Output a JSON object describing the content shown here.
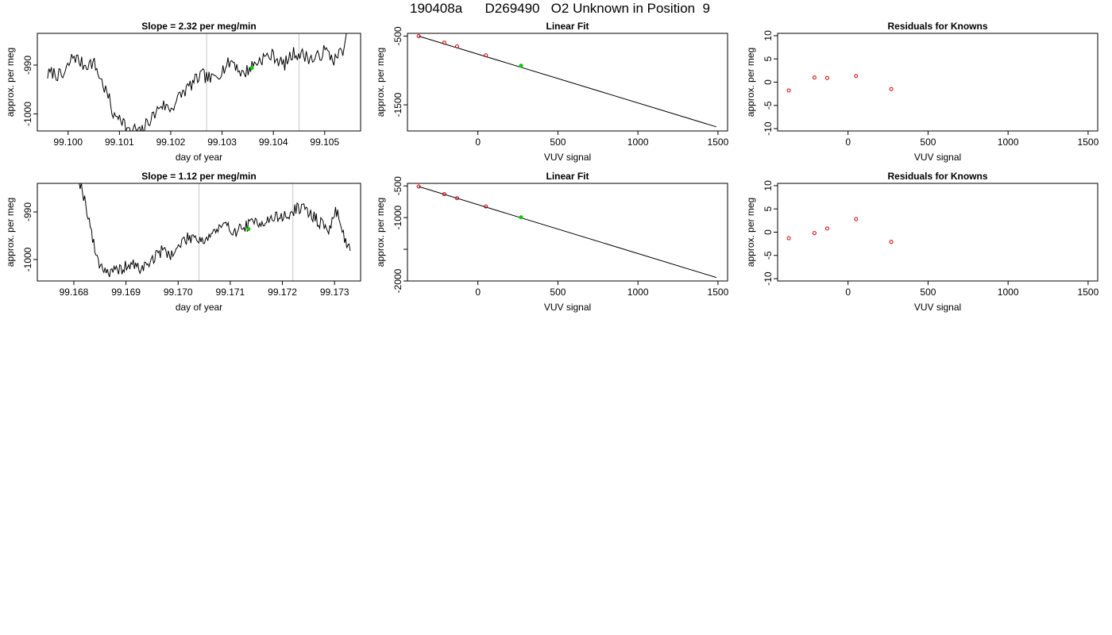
{
  "title": "190408a      D269490   O2 Unknown in Position  9",
  "colors": {
    "series": "#000000",
    "known": "#cc0000",
    "unknown": "#00cc00",
    "marker_line": "#c8c8c8",
    "fit": "#000000"
  },
  "chart_data": [
    {
      "type": "line",
      "title": "Slope =  2.32  per meg/min",
      "xlabel": "day of year",
      "ylabel": "approx. per meg",
      "xlim": [
        99.0994,
        99.1057
      ],
      "ylim": [
        -1003.5,
        -983.5
      ],
      "xticks": [
        99.1,
        99.101,
        99.102,
        99.103,
        99.104,
        99.105
      ],
      "xtick_labels": [
        "99.100",
        "99.101",
        "99.102",
        "99.103",
        "99.104",
        "99.105"
      ],
      "yticks": [
        -1000,
        -990
      ],
      "ytick_labels": [
        "-1000",
        "-990"
      ],
      "vlines": [
        99.1027,
        99.1045
      ],
      "anchors": [
        [
          99.0996,
          -992
        ],
        [
          99.0997,
          -991.5
        ],
        [
          99.0999,
          -992.5
        ],
        [
          99.1001,
          -988
        ],
        [
          99.1003,
          -990
        ],
        [
          99.1005,
          -989.5
        ],
        [
          99.1006,
          -992
        ],
        [
          99.1008,
          -997
        ],
        [
          99.1009,
          -1001
        ],
        [
          99.101,
          -1000
        ],
        [
          99.1011,
          -1002
        ],
        [
          99.1012,
          -1004
        ],
        [
          99.1013,
          -1003
        ],
        [
          99.1014,
          -1004
        ],
        [
          99.1016,
          -1001
        ],
        [
          99.1017,
          -1000
        ],
        [
          99.1018,
          -998
        ],
        [
          99.102,
          -999
        ],
        [
          99.1022,
          -996
        ],
        [
          99.1024,
          -994
        ],
        [
          99.1026,
          -992
        ],
        [
          99.1028,
          -993
        ],
        [
          99.103,
          -991
        ],
        [
          99.1032,
          -989
        ],
        [
          99.1034,
          -992
        ],
        [
          99.1036,
          -990
        ],
        [
          99.1038,
          -988.5
        ],
        [
          99.104,
          -988
        ],
        [
          99.1042,
          -990
        ],
        [
          99.1044,
          -987.5
        ],
        [
          99.1046,
          -988
        ],
        [
          99.1048,
          -989
        ],
        [
          99.105,
          -987
        ],
        [
          99.1052,
          -989
        ],
        [
          99.1054,
          -986
        ],
        [
          99.1055,
          -980
        ]
      ],
      "noise": 1.4,
      "seed": 7,
      "points": [
        {
          "x": 99.10358,
          "y": -990.6,
          "kind": "unknown"
        }
      ]
    },
    {
      "type": "scatter",
      "title": "Linear Fit",
      "xlabel": "VUV signal",
      "ylabel": "approx. per meg",
      "xlim": [
        -440,
        1560
      ],
      "ylim": [
        -1880,
        -460
      ],
      "xticks": [
        0,
        500,
        1000,
        1500
      ],
      "xtick_labels": [
        "0",
        "500",
        "1000",
        "1500"
      ],
      "yticks": [
        -1500,
        -500
      ],
      "ytick_labels": [
        "-1500",
        "-500"
      ],
      "fit_line": [
        [
          -370,
          -500
        ],
        [
          1490,
          -1820
        ]
      ],
      "points": [
        {
          "x": -370,
          "y": -500,
          "kind": "known"
        },
        {
          "x": -210,
          "y": -595,
          "kind": "known"
        },
        {
          "x": -130,
          "y": -650,
          "kind": "known"
        },
        {
          "x": 50,
          "y": -780,
          "kind": "known"
        },
        {
          "x": 270,
          "y": -930,
          "kind": "unknown"
        }
      ]
    },
    {
      "type": "scatter",
      "title": "Residuals for Knowns",
      "xlabel": "VUV signal",
      "ylabel": "approx. per meg",
      "xlim": [
        -440,
        1560
      ],
      "ylim": [
        -10.5,
        10.5
      ],
      "xticks": [
        0,
        500,
        1000,
        1500
      ],
      "xtick_labels": [
        "0",
        "500",
        "1000",
        "1500"
      ],
      "yticks": [
        -10,
        -5,
        0,
        5,
        10
      ],
      "ytick_labels": [
        "-10",
        "-5",
        "0",
        "5",
        "10"
      ],
      "points": [
        {
          "x": -370,
          "y": -1.8,
          "kind": "known"
        },
        {
          "x": -210,
          "y": 1.0,
          "kind": "known"
        },
        {
          "x": -130,
          "y": 0.9,
          "kind": "known"
        },
        {
          "x": 50,
          "y": 1.3,
          "kind": "known"
        },
        {
          "x": 270,
          "y": -1.5,
          "kind": "known"
        }
      ]
    },
    {
      "type": "line",
      "title": "Slope =  1.12  per meg/min",
      "xlabel": "day of year",
      "ylabel": "approx. per meg",
      "xlim": [
        99.1673,
        99.1735
      ],
      "ylim": [
        -1004.5,
        -984
      ],
      "xticks": [
        99.168,
        99.169,
        99.17,
        99.171,
        99.172,
        99.173
      ],
      "xtick_labels": [
        "99.168",
        "99.169",
        "99.170",
        "99.171",
        "99.172",
        "99.173"
      ],
      "yticks": [
        -1000,
        -990
      ],
      "ytick_labels": [
        "-1000",
        "-990"
      ],
      "vlines": [
        99.1704,
        99.1722
      ],
      "anchors": [
        [
          99.1681,
          -983
        ],
        [
          99.1682,
          -987
        ],
        [
          99.1683,
          -992
        ],
        [
          99.1684,
          -998
        ],
        [
          99.1685,
          -1001
        ],
        [
          99.1687,
          -1003
        ],
        [
          99.1689,
          -1002
        ],
        [
          99.1691,
          -1001
        ],
        [
          99.1693,
          -1002
        ],
        [
          99.1695,
          -1000
        ],
        [
          99.1697,
          -998
        ],
        [
          99.1699,
          -999
        ],
        [
          99.1701,
          -996
        ],
        [
          99.1703,
          -995
        ],
        [
          99.1705,
          -996
        ],
        [
          99.1707,
          -994
        ],
        [
          99.1709,
          -993
        ],
        [
          99.1711,
          -994
        ],
        [
          99.1713,
          -993
        ],
        [
          99.1715,
          -992
        ],
        [
          99.1717,
          -992
        ],
        [
          99.1719,
          -991
        ],
        [
          99.1721,
          -991
        ],
        [
          99.1723,
          -989
        ],
        [
          99.1725,
          -990
        ],
        [
          99.1727,
          -992
        ],
        [
          99.1729,
          -994
        ],
        [
          99.173,
          -990
        ],
        [
          99.1731,
          -991
        ],
        [
          99.1732,
          -996
        ],
        [
          99.1733,
          -998
        ]
      ],
      "noise": 1.3,
      "seed": 19,
      "points": [
        {
          "x": 99.17135,
          "y": -993.6,
          "kind": "unknown"
        }
      ]
    },
    {
      "type": "scatter",
      "title": "Linear Fit",
      "xlabel": "VUV signal",
      "ylabel": "approx. per meg",
      "xlim": [
        -440,
        1560
      ],
      "ylim": [
        -2000,
        -460
      ],
      "xticks": [
        0,
        500,
        1000,
        1500
      ],
      "xtick_labels": [
        "0",
        "500",
        "1000",
        "1500"
      ],
      "yticks": [
        -2000,
        -1500,
        -1000,
        -500
      ],
      "ytick_labels": [
        "-2000",
        "",
        "-1000",
        "-500"
      ],
      "fit_line": [
        [
          -370,
          -510
        ],
        [
          1490,
          -1945
        ]
      ],
      "points": [
        {
          "x": -370,
          "y": -510,
          "kind": "known"
        },
        {
          "x": -210,
          "y": -630,
          "kind": "known"
        },
        {
          "x": -130,
          "y": -695,
          "kind": "known"
        },
        {
          "x": 50,
          "y": -825,
          "kind": "known"
        },
        {
          "x": 270,
          "y": -995,
          "kind": "unknown"
        }
      ]
    },
    {
      "type": "scatter",
      "title": "Residuals for Knowns",
      "xlabel": "VUV signal",
      "ylabel": "approx. per meg",
      "xlim": [
        -440,
        1560
      ],
      "ylim": [
        -10.5,
        10.5
      ],
      "xticks": [
        0,
        500,
        1000,
        1500
      ],
      "xtick_labels": [
        "0",
        "500",
        "1000",
        "1500"
      ],
      "yticks": [
        -10,
        -5,
        0,
        5,
        10
      ],
      "ytick_labels": [
        "-10",
        "-5",
        "0",
        "5",
        "10"
      ],
      "points": [
        {
          "x": -370,
          "y": -1.3,
          "kind": "known"
        },
        {
          "x": -210,
          "y": -0.2,
          "kind": "known"
        },
        {
          "x": -130,
          "y": 0.8,
          "kind": "known"
        },
        {
          "x": 50,
          "y": 2.8,
          "kind": "known"
        },
        {
          "x": 270,
          "y": -2.1,
          "kind": "known"
        }
      ]
    }
  ]
}
